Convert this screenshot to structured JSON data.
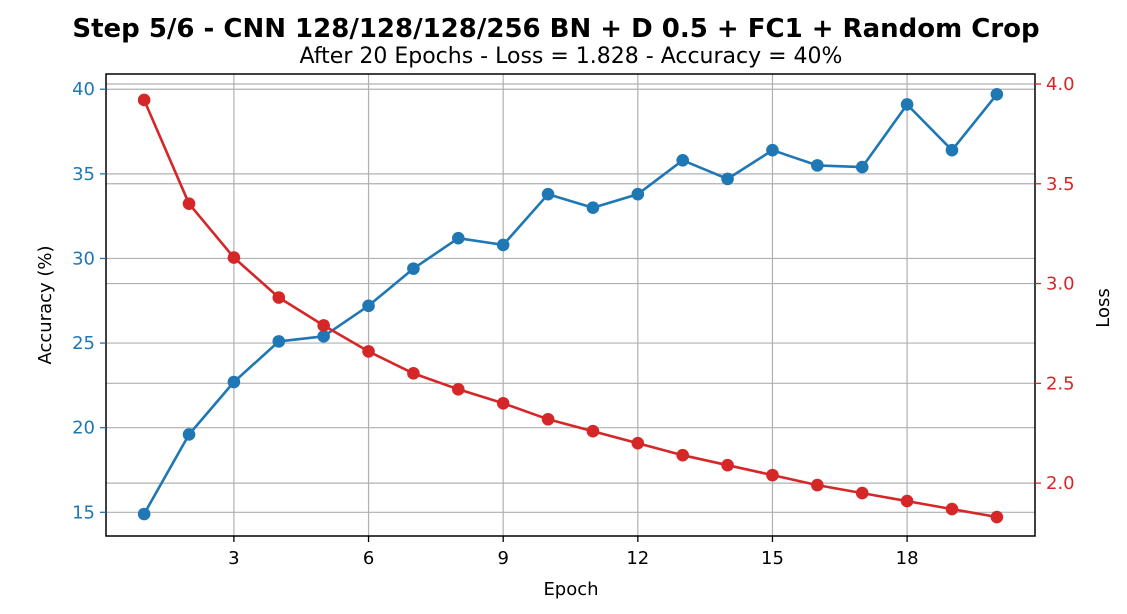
{
  "chart_data": {
    "type": "line",
    "title": "Step 5/6 - CNN 128/128/128/256 BN + D 0.5 + FC1 + Random Crop",
    "subtitle": "After 20 Epochs - Loss = 1.828 - Accuracy = 40%",
    "xlabel": "Epoch",
    "ylabel": "Accuracy (%)",
    "y2label": "Loss",
    "x": [
      1,
      2,
      3,
      4,
      5,
      6,
      7,
      8,
      9,
      10,
      11,
      12,
      13,
      14,
      15,
      16,
      17,
      18,
      19,
      20
    ],
    "xticks": [
      3,
      6,
      9,
      12,
      15,
      18
    ],
    "xlim": [
      0.15,
      20.85
    ],
    "ylim": [
      13.6,
      40.9
    ],
    "yticks": [
      15,
      20,
      25,
      30,
      35,
      40
    ],
    "y2lim": [
      1.735,
      4.05
    ],
    "y2ticks": [
      2.0,
      2.5,
      3.0,
      3.5,
      4.0
    ],
    "grid": true,
    "series": [
      {
        "name": "",
        "axis": "left",
        "color": "#1f77b4",
        "values": [
          14.9,
          19.6,
          22.7,
          25.1,
          25.4,
          27.2,
          29.4,
          31.2,
          30.8,
          33.8,
          33.0,
          33.8,
          35.8,
          34.7,
          36.4,
          35.5,
          35.4,
          39.1,
          36.4,
          39.7
        ]
      },
      {
        "name": "",
        "axis": "right",
        "color": "#d62728",
        "values": [
          3.92,
          3.4,
          3.13,
          2.93,
          2.79,
          2.66,
          2.55,
          2.47,
          2.4,
          2.32,
          2.26,
          2.2,
          2.14,
          2.09,
          2.04,
          1.99,
          1.95,
          1.91,
          1.87,
          1.83
        ]
      }
    ]
  }
}
